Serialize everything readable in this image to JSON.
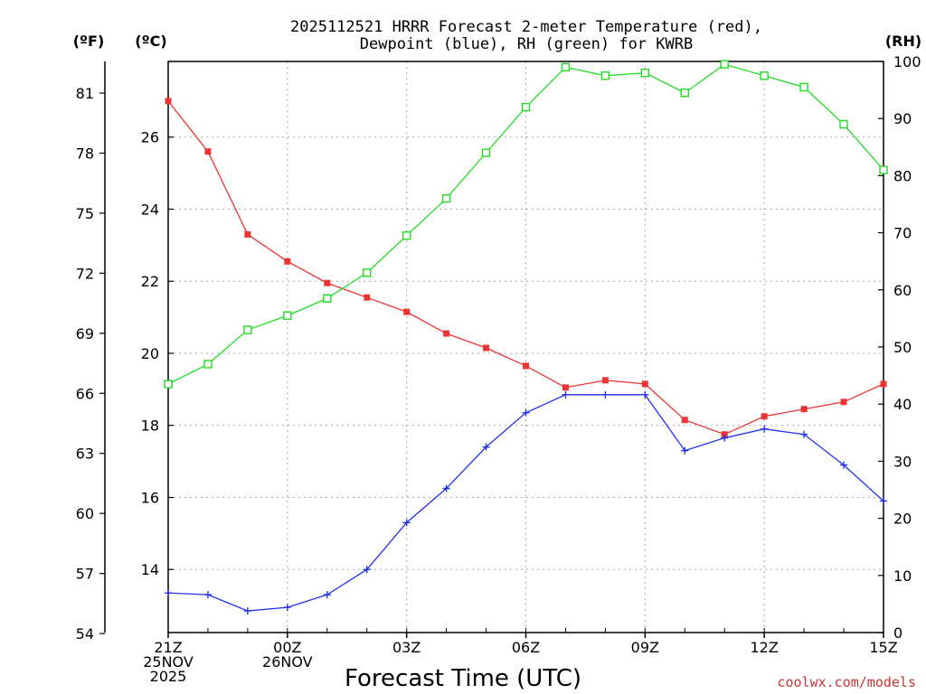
{
  "chart_data": {
    "type": "line",
    "title": [
      "2025112521 HRRR Forecast 2-meter Temperature (red),",
      "Dewpoint (blue), RH (green) for KWRB"
    ],
    "xlabel": "Forecast Time (UTC)",
    "credit": "coolwx.com/models",
    "units": {
      "f": "(ºF)",
      "c": "(ºC)",
      "rh": "(RH)"
    },
    "x_hours": [
      0,
      1,
      2,
      3,
      4,
      5,
      6,
      7,
      8,
      9,
      10,
      11,
      12,
      13,
      14,
      15,
      16,
      17,
      18
    ],
    "x_ticks": [
      {
        "hour": 0,
        "lines": [
          "21Z",
          "25NOV",
          "2025"
        ]
      },
      {
        "hour": 3,
        "lines": [
          "00Z",
          "26NOV"
        ]
      },
      {
        "hour": 6,
        "lines": [
          "03Z"
        ]
      },
      {
        "hour": 9,
        "lines": [
          "06Z"
        ]
      },
      {
        "hour": 12,
        "lines": [
          "09Z"
        ]
      },
      {
        "hour": 15,
        "lines": [
          "12Z"
        ]
      },
      {
        "hour": 18,
        "lines": [
          "15Z"
        ]
      }
    ],
    "xlim": [
      0,
      18
    ],
    "ylim_c": [
      12.25,
      28.1
    ],
    "ylim_rh": [
      0,
      100
    ],
    "yticks_c": [
      14,
      16,
      18,
      20,
      22,
      24,
      26
    ],
    "yticks_f": [
      54,
      57,
      60,
      63,
      66,
      69,
      72,
      75,
      78,
      81
    ],
    "yticks_rh": [
      0,
      10,
      20,
      30,
      40,
      50,
      60,
      70,
      80,
      90,
      100
    ],
    "series": [
      {
        "name": "Temperature",
        "unit": "C",
        "color": "#ee3333",
        "marker": "filled-square",
        "values": [
          27.0,
          25.6,
          23.3,
          22.55,
          21.95,
          21.55,
          21.15,
          20.55,
          20.15,
          19.65,
          19.05,
          19.25,
          19.15,
          18.15,
          17.75,
          18.25,
          18.45,
          18.65,
          19.15
        ]
      },
      {
        "name": "Dewpoint",
        "unit": "C",
        "color": "#2233ee",
        "marker": "plus",
        "values": [
          13.35,
          13.3,
          12.85,
          12.95,
          13.3,
          14.0,
          15.3,
          16.25,
          17.4,
          18.35,
          18.85,
          18.85,
          18.85,
          17.3,
          17.65,
          17.9,
          17.75,
          16.9,
          15.9
        ]
      },
      {
        "name": "RH",
        "unit": "%",
        "color": "#22dd22",
        "marker": "open-square",
        "values": [
          43.5,
          47.0,
          53.0,
          55.5,
          58.5,
          63.0,
          69.5,
          76.0,
          84.0,
          92.0,
          99.0,
          97.5,
          98.0,
          94.5,
          99.5,
          97.5,
          95.5,
          89.0,
          81.0
        ]
      }
    ]
  }
}
